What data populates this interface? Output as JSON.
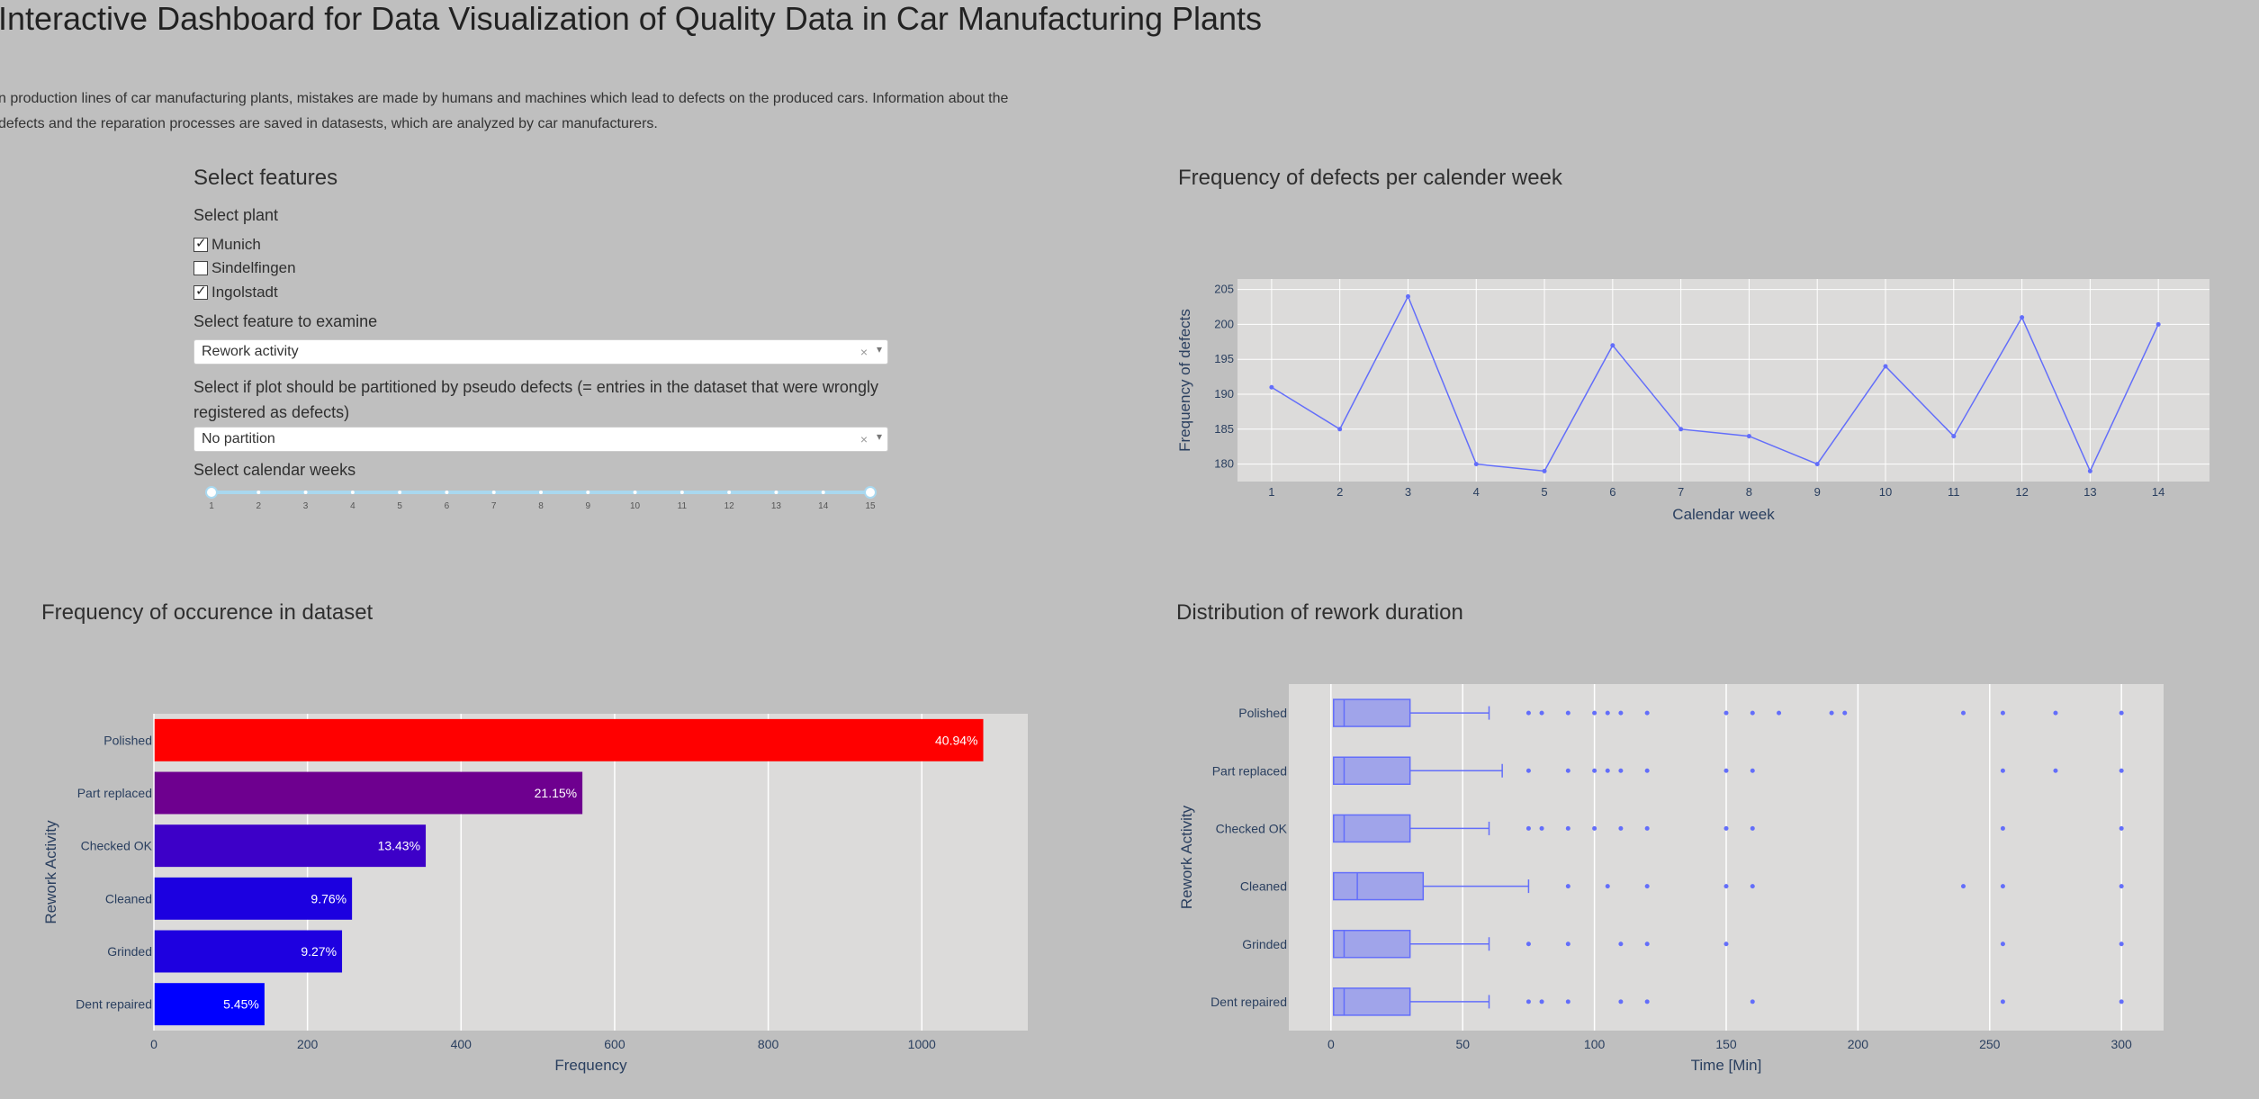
{
  "header": {
    "title": "Interactive Dashboard for Data Visualization of Quality Data in Car Manufacturing Plants",
    "intro_line1": "n production lines of car manufacturing plants, mistakes are made by humans and machines which lead to defects on the produced cars. Information about the",
    "intro_line2": "defects and the reparation processes are saved in datasests, which are analyzed by car manufacturers."
  },
  "controls": {
    "section_title": "Select features",
    "plant_label": "Select plant",
    "plants": [
      {
        "label": "Munich",
        "checked": true
      },
      {
        "label": "Sindelfingen",
        "checked": false
      },
      {
        "label": "Ingolstadt",
        "checked": true
      }
    ],
    "feature_label": "Select feature to examine",
    "feature_value": "Rework activity",
    "partition_label_line1": "Select if plot should be partitioned by pseudo defects (= entries in the dataset that were wrongly",
    "partition_label_line2": "registered as defects)",
    "partition_value": "No partition",
    "weeks_label": "Select calendar weeks",
    "weeks_marks": [
      "1",
      "2",
      "3",
      "4",
      "5",
      "6",
      "7",
      "8",
      "9",
      "10",
      "11",
      "12",
      "13",
      "14",
      "15"
    ],
    "weeks_range": [
      1,
      15
    ],
    "clear_glyph": "×",
    "arrow_glyph": "▾"
  },
  "panels": {
    "line_title": "Frequency of defects per calender week",
    "bar_title": "Frequency of occurence in dataset",
    "box_title": "Distribution of rework duration"
  },
  "chart_data": [
    {
      "type": "line",
      "xlabel": "Calendar week",
      "ylabel": "Frequency of defects",
      "x": [
        1,
        2,
        3,
        4,
        5,
        6,
        7,
        8,
        9,
        10,
        11,
        12,
        13,
        14
      ],
      "y": [
        191,
        185,
        204,
        180,
        179,
        197,
        185,
        184,
        180,
        194,
        184,
        201,
        179,
        200
      ],
      "xlim": [
        0.5,
        14.75
      ],
      "ylim": [
        177.5,
        206.5
      ],
      "yticks": [
        180,
        185,
        190,
        195,
        200,
        205
      ],
      "xticks": [
        1,
        2,
        3,
        4,
        5,
        6,
        7,
        8,
        9,
        10,
        11,
        12,
        13,
        14
      ],
      "grid": true,
      "color": "#636efa"
    },
    {
      "type": "bar",
      "orientation": "horizontal",
      "xlabel": "Frequency",
      "ylabel": "Rework Activity",
      "categories": [
        "Polished",
        "Part replaced",
        "Checked OK",
        "Cleaned",
        "Grinded",
        "Dent repaired"
      ],
      "values": [
        1080,
        558,
        354,
        258,
        245,
        144
      ],
      "labels": [
        "40.94%",
        "21.15%",
        "13.43%",
        "9.76%",
        "9.27%",
        "5.45%"
      ],
      "colors": [
        "#ff0000",
        "#6e008f",
        "#3d00c8",
        "#1c00e0",
        "#1e00e0",
        "#0000ff"
      ],
      "xlim": [
        0,
        1138
      ],
      "xticks": [
        0,
        200,
        400,
        600,
        800,
        1000
      ],
      "grid": true
    },
    {
      "type": "box",
      "orientation": "horizontal",
      "xlabel": "Time [Min]",
      "ylabel": "Rework Activity",
      "xlim": [
        -16,
        316
      ],
      "xticks": [
        0,
        50,
        100,
        150,
        200,
        250,
        300
      ],
      "color": "#636efa",
      "series": [
        {
          "category": "Polished",
          "min": 0,
          "q1": 1,
          "median": 5,
          "q3": 30,
          "whisker_high": 60,
          "outliers": [
            75,
            80,
            90,
            100,
            105,
            110,
            120,
            150,
            160,
            170,
            190,
            195,
            240,
            255,
            275,
            300
          ]
        },
        {
          "category": "Part replaced",
          "min": 0,
          "q1": 1,
          "median": 5,
          "q3": 30,
          "whisker_high": 65,
          "outliers": [
            75,
            90,
            100,
            105,
            110,
            120,
            150,
            160,
            255,
            275,
            300
          ]
        },
        {
          "category": "Checked OK",
          "min": 0,
          "q1": 1,
          "median": 5,
          "q3": 30,
          "whisker_high": 60,
          "outliers": [
            75,
            80,
            90,
            100,
            110,
            120,
            150,
            160,
            255,
            300
          ]
        },
        {
          "category": "Cleaned",
          "min": 0,
          "q1": 1,
          "median": 10,
          "q3": 35,
          "whisker_high": 75,
          "outliers": [
            90,
            105,
            120,
            150,
            160,
            240,
            255,
            300
          ]
        },
        {
          "category": "Grinded",
          "min": 0,
          "q1": 1,
          "median": 5,
          "q3": 30,
          "whisker_high": 60,
          "outliers": [
            75,
            90,
            110,
            120,
            150,
            255,
            300
          ]
        },
        {
          "category": "Dent repaired",
          "min": 0,
          "q1": 1,
          "median": 5,
          "q3": 30,
          "whisker_high": 60,
          "outliers": [
            75,
            80,
            90,
            110,
            120,
            160,
            255,
            300
          ]
        }
      ]
    }
  ]
}
